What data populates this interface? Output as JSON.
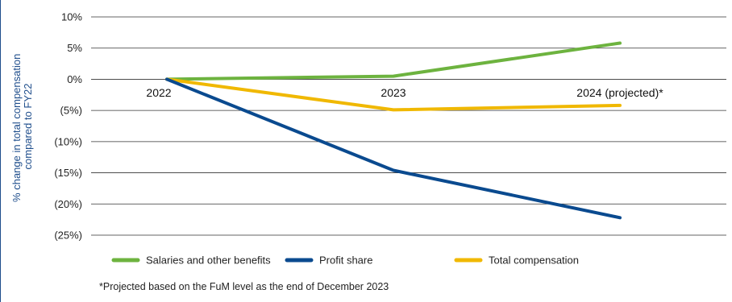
{
  "chart_data": {
    "type": "line",
    "title": "",
    "ylabel_line1": "% change in total compensation",
    "ylabel_line2": "compared to FY22",
    "categories": [
      "2022",
      "2023",
      "2024 (projected)*"
    ],
    "ylim": [
      -25,
      10
    ],
    "yticks": [
      {
        "value": 10,
        "label": "10%"
      },
      {
        "value": 5,
        "label": "5%"
      },
      {
        "value": 0,
        "label": "0%"
      },
      {
        "value": -5,
        "label": "(5%)"
      },
      {
        "value": -10,
        "label": "(10%)"
      },
      {
        "value": -15,
        "label": "(15%)"
      },
      {
        "value": -20,
        "label": "(20%)"
      },
      {
        "value": -25,
        "label": "(25%)"
      }
    ],
    "grid": true,
    "legend_position": "bottom-left",
    "series": [
      {
        "name": "Salaries and other benefits",
        "color": "#6db33f",
        "values": [
          0,
          0.5,
          5.8
        ]
      },
      {
        "name": "Profit share",
        "color": "#0a4a8f",
        "values": [
          0,
          -14.6,
          -22.2
        ]
      },
      {
        "name": "Total compensation",
        "color": "#f0b800",
        "values": [
          0,
          -4.9,
          -4.2
        ]
      }
    ],
    "footnote": "*Projected based on the FuM level as the end of December 2023"
  }
}
